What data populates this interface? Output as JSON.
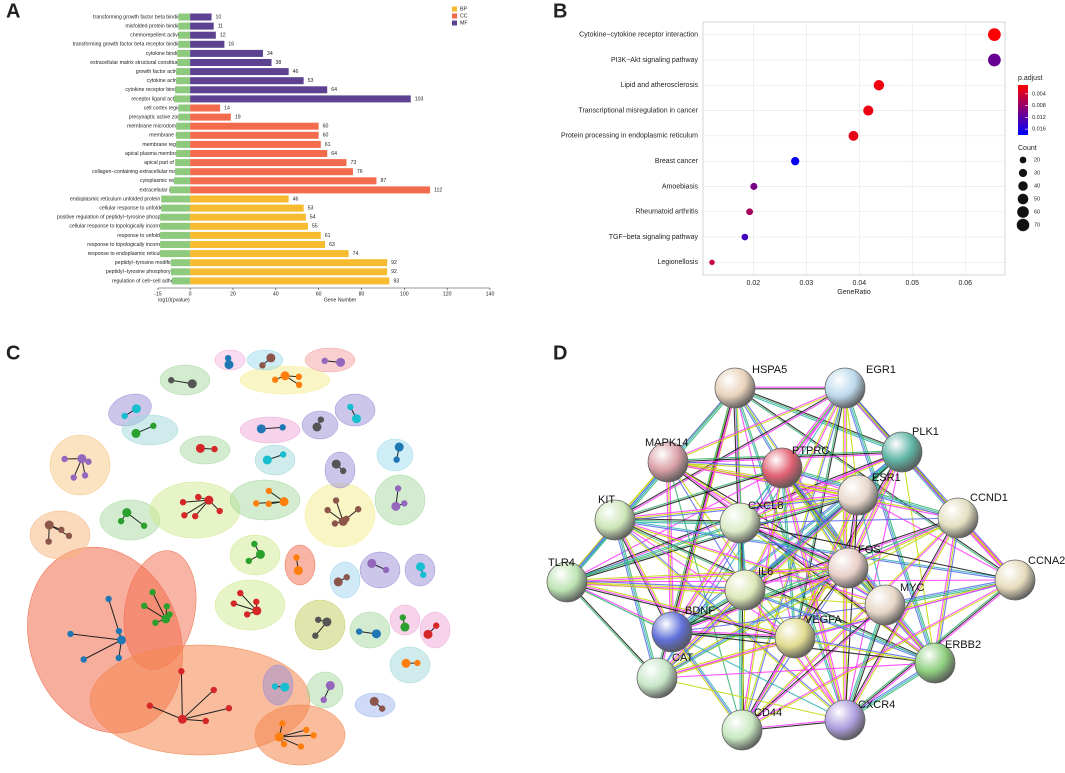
{
  "panel_labels": [
    "A",
    "B",
    "C",
    "D"
  ],
  "chart_data": [
    {
      "type": "hbar",
      "categories": [
        "transforming growth factor beta binding",
        "misfolded protein binding",
        "chemorepellent activity",
        "transforming growth factor beta receptor binding",
        "cytokine binding",
        "extracellular matrix structural constituent",
        "growth factor activity",
        "cytokine activity",
        "cytokine receptor binding",
        "receptor ligand activity",
        "cell cortex region",
        "presynaptic active zone",
        "membrane microdomain",
        "membrane raft",
        "membrane region",
        "apical plasma membrane",
        "apical part of cell",
        "collagen−containing extracellular matrix",
        "cytoplasmic region",
        "extracellular matrix",
        "endoplasmic reticulum unfolded protein response",
        "cellular response to unfolded protein",
        "positive regulation of peptidyl−tyrosine phosphorylation",
        "cellular response to topologically incorrect protein",
        "response to unfolded protein",
        "response to topologically incorrect protein",
        "response to endoplasmic reticulum stress",
        "peptidyl−tyrosine modification",
        "peptidyl−tyrosine phosphorylation",
        "regulation of cell−cell adhesion"
      ],
      "series": [
        {
          "color": "#8dca7d",
          "values": [
            -5.5,
            -5.5,
            -5.5,
            -5.5,
            -6,
            -6,
            -6.5,
            -6.5,
            -7,
            -7.5,
            -5.5,
            -5.5,
            -6.5,
            -6.5,
            -6.5,
            -6.5,
            -7,
            -7,
            -7.5,
            -9.5,
            -13.5,
            -13.5,
            -14,
            -14,
            -14,
            -14,
            -14,
            -9,
            -9,
            -8.5
          ]
        },
        {
          "name": "BP",
          "color": "#f6bb2f",
          "values": [
            null,
            null,
            null,
            null,
            null,
            null,
            null,
            null,
            null,
            null,
            null,
            null,
            null,
            null,
            null,
            null,
            null,
            null,
            null,
            null,
            46,
            53,
            54,
            55,
            61,
            63,
            74,
            92,
            92,
            93
          ]
        },
        {
          "name": "CC",
          "color": "#f26b4c",
          "values": [
            null,
            null,
            null,
            null,
            null,
            null,
            null,
            null,
            null,
            null,
            14,
            19,
            60,
            60,
            61,
            64,
            73,
            76,
            87,
            112,
            null,
            null,
            null,
            null,
            null,
            null,
            null,
            null,
            null,
            null
          ]
        },
        {
          "name": "MF",
          "color": "#5c4290",
          "values": [
            10,
            11,
            12,
            16,
            34,
            38,
            46,
            53,
            64,
            103,
            null,
            null,
            null,
            null,
            null,
            null,
            null,
            null,
            null,
            null,
            null,
            null,
            null,
            null,
            null,
            null,
            null,
            null,
            null,
            null
          ]
        }
      ],
      "xlabel_left": "log10(pvalue)",
      "xlabel": "Gene Number",
      "xlim": [
        -15,
        140
      ],
      "xticks": [
        -15,
        0,
        20,
        40,
        60,
        80,
        100,
        120,
        140
      ]
    },
    {
      "type": "dot",
      "categories": [
        "Cytokine−cytokine receptor interaction",
        "PI3K−Akt signaling pathway",
        "Lipid and atherosclerosis",
        "Transcriptional misregulation in cancer",
        "Protein processing in endoplasmic reticulum",
        "Breast cancer",
        "Amoebiasis",
        "Rheumatoid arthritis",
        "TGF−beta signaling pathway",
        "Legionellosis"
      ],
      "values": [
        0.0655,
        0.0655,
        0.0437,
        0.0417,
        0.0389,
        0.0279,
        0.0201,
        0.0193,
        0.0184,
        0.0122
      ],
      "counts": [
        72,
        72,
        48,
        46,
        43,
        31,
        22,
        21,
        20,
        13
      ],
      "p_adjust": [
        0.0012,
        0.011,
        0.002,
        0.0022,
        0.0025,
        0.0175,
        0.01,
        0.007,
        0.0135,
        0.005
      ],
      "xlabel": "GeneRatio",
      "xlim": [
        0.0105,
        0.0675
      ],
      "xticks": [
        0.02,
        0.03,
        0.04,
        0.05,
        0.06
      ],
      "grid": true,
      "color_legend": {
        "title": "p.adjust",
        "range": [
          0.001,
          0.018
        ],
        "ticks": [
          0.004,
          0.008,
          0.012,
          0.016
        ],
        "colors": [
          "#ff0000",
          "#0000ff"
        ]
      },
      "size_legend": {
        "title": "Count",
        "values": [
          20,
          30,
          40,
          50,
          60,
          70
        ]
      }
    }
  ],
  "network_d": {
    "nodes": [
      "HSPA5",
      "EGR1",
      "PLK1",
      "MAPK14",
      "PTPRC",
      "ESR1",
      "KIT",
      "CCND1",
      "CXCL8",
      "FOS",
      "CCNA2",
      "TLR4",
      "IL6",
      "MYC",
      "BDNF",
      "VEGFA",
      "ERBB2",
      "CAT",
      "CD44",
      "CXCR4"
    ]
  }
}
